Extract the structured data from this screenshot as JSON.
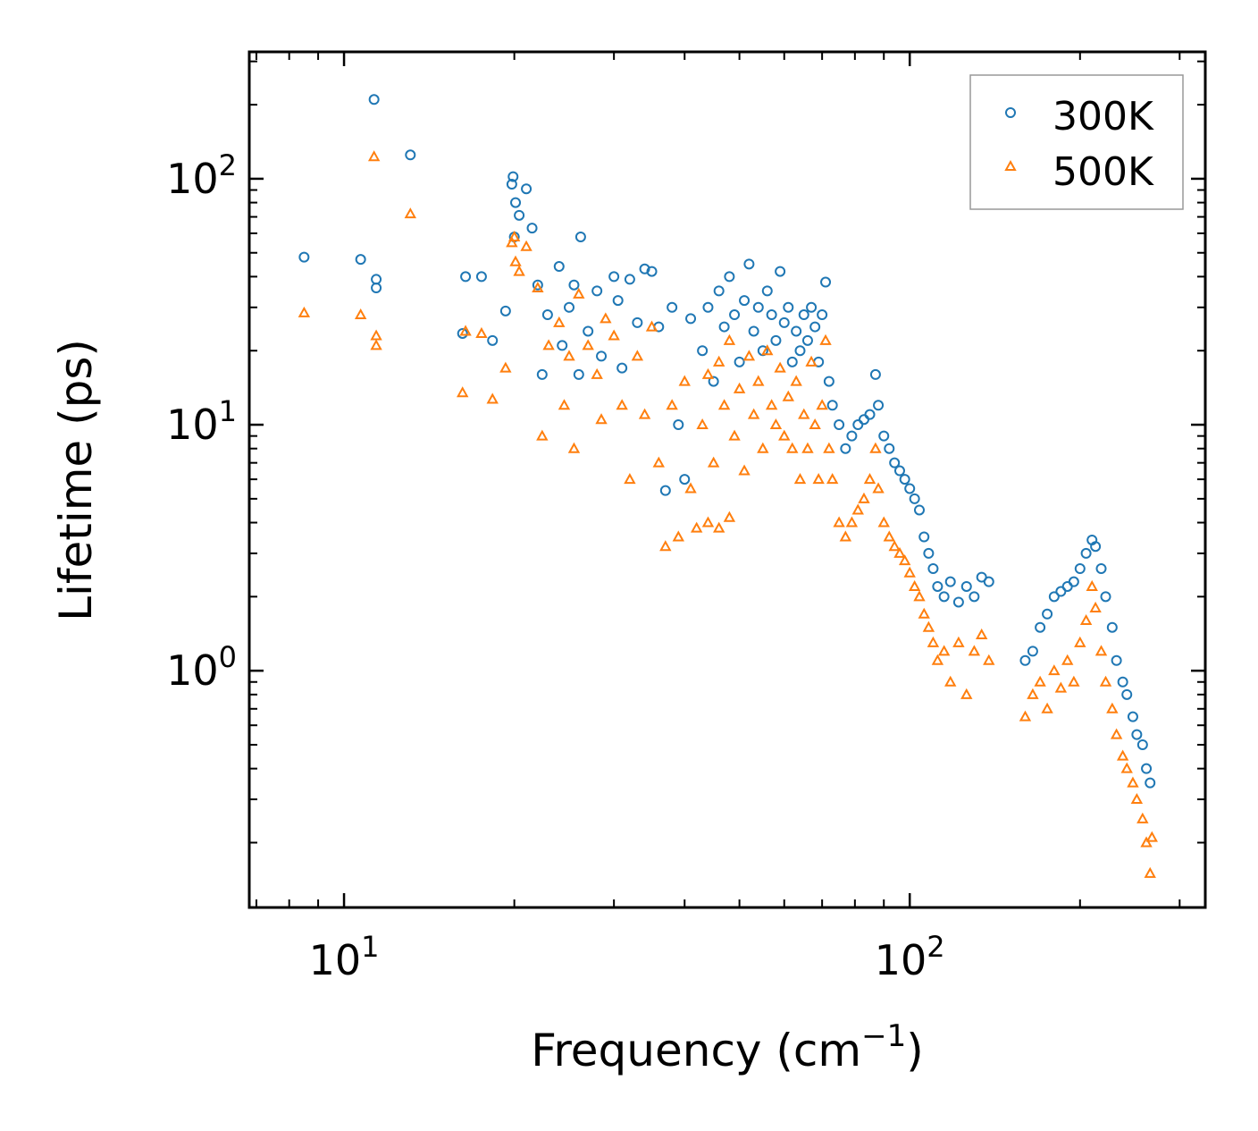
{
  "chart_data": {
    "type": "scatter",
    "xlabel": "Frequency (cm",
    "xlabel_sup": "−1",
    "xlabel_end": ")",
    "ylabel": "Lifetime (ps)",
    "xscale": "log",
    "yscale": "log",
    "xlim": [
      6.8,
      333
    ],
    "ylim": [
      0.109,
      328
    ],
    "x_ticks": [
      {
        "base": "10",
        "exp": "1",
        "value": 10
      },
      {
        "base": "10",
        "exp": "2",
        "value": 100
      }
    ],
    "y_ticks": [
      {
        "base": "10",
        "exp": "0",
        "value": 1
      },
      {
        "base": "10",
        "exp": "1",
        "value": 10
      },
      {
        "base": "10",
        "exp": "2",
        "value": 100
      }
    ],
    "legend_position": "top-right",
    "grid": false,
    "series": [
      {
        "name": "300K",
        "marker": "circle",
        "color": "#1f77b4",
        "points": [
          [
            8.5,
            48
          ],
          [
            10.7,
            47
          ],
          [
            11.3,
            210
          ],
          [
            11.4,
            39
          ],
          [
            11.4,
            36
          ],
          [
            13.1,
            125
          ],
          [
            16.2,
            23.5
          ],
          [
            16.4,
            40
          ],
          [
            17.5,
            40
          ],
          [
            18.3,
            22
          ],
          [
            19.3,
            29
          ],
          [
            19.8,
            95
          ],
          [
            19.9,
            102
          ],
          [
            20,
            58
          ],
          [
            20.1,
            80
          ],
          [
            20.4,
            71
          ],
          [
            21,
            91
          ],
          [
            21.5,
            63
          ],
          [
            22,
            37
          ],
          [
            22.4,
            16
          ],
          [
            22.9,
            28
          ],
          [
            24,
            44
          ],
          [
            24.3,
            21
          ],
          [
            25,
            30
          ],
          [
            25.5,
            37
          ],
          [
            26,
            16
          ],
          [
            26.2,
            58
          ],
          [
            27,
            24
          ],
          [
            28,
            35
          ],
          [
            28.5,
            19
          ],
          [
            30,
            40
          ],
          [
            30.5,
            32
          ],
          [
            31,
            17
          ],
          [
            32,
            39
          ],
          [
            33,
            26
          ],
          [
            34,
            43
          ],
          [
            35,
            42
          ],
          [
            36,
            25
          ],
          [
            37,
            5.4
          ],
          [
            38,
            30
          ],
          [
            39,
            10
          ],
          [
            40,
            6
          ],
          [
            41,
            27
          ],
          [
            43,
            20
          ],
          [
            44,
            30
          ],
          [
            45,
            15
          ],
          [
            46,
            35
          ],
          [
            47,
            25
          ],
          [
            48,
            40
          ],
          [
            49,
            28
          ],
          [
            50,
            18
          ],
          [
            51,
            32
          ],
          [
            52,
            45
          ],
          [
            53,
            24
          ],
          [
            54,
            30
          ],
          [
            55,
            20
          ],
          [
            56,
            35
          ],
          [
            57,
            28
          ],
          [
            58,
            22
          ],
          [
            59,
            42
          ],
          [
            60,
            26
          ],
          [
            61,
            30
          ],
          [
            62,
            18
          ],
          [
            63,
            24
          ],
          [
            64,
            20
          ],
          [
            65,
            28
          ],
          [
            66,
            22
          ],
          [
            67,
            30
          ],
          [
            68,
            25
          ],
          [
            69,
            18
          ],
          [
            70,
            28
          ],
          [
            71,
            38
          ],
          [
            72,
            15
          ],
          [
            73,
            12
          ],
          [
            75,
            10
          ],
          [
            77,
            8
          ],
          [
            79,
            9
          ],
          [
            81,
            10
          ],
          [
            83,
            10.5
          ],
          [
            85,
            11
          ],
          [
            87,
            16
          ],
          [
            88,
            12
          ],
          [
            90,
            9
          ],
          [
            92,
            8
          ],
          [
            94,
            7
          ],
          [
            96,
            6.5
          ],
          [
            98,
            6
          ],
          [
            100,
            5.5
          ],
          [
            102,
            5
          ],
          [
            104,
            4.5
          ],
          [
            106,
            3.5
          ],
          [
            108,
            3
          ],
          [
            110,
            2.6
          ],
          [
            112,
            2.2
          ],
          [
            115,
            2
          ],
          [
            118,
            2.3
          ],
          [
            122,
            1.9
          ],
          [
            126,
            2.2
          ],
          [
            130,
            2
          ],
          [
            134,
            2.4
          ],
          [
            138,
            2.3
          ],
          [
            160,
            1.1
          ],
          [
            165,
            1.2
          ],
          [
            170,
            1.5
          ],
          [
            175,
            1.7
          ],
          [
            180,
            2
          ],
          [
            185,
            2.1
          ],
          [
            190,
            2.2
          ],
          [
            195,
            2.3
          ],
          [
            200,
            2.6
          ],
          [
            205,
            3
          ],
          [
            210,
            3.4
          ],
          [
            213,
            3.2
          ],
          [
            218,
            2.6
          ],
          [
            222,
            2
          ],
          [
            228,
            1.5
          ],
          [
            232,
            1.1
          ],
          [
            238,
            0.9
          ],
          [
            242,
            0.8
          ],
          [
            248,
            0.65
          ],
          [
            252,
            0.55
          ],
          [
            258,
            0.5
          ],
          [
            262,
            0.4
          ],
          [
            266,
            0.35
          ]
        ]
      },
      {
        "name": "500K",
        "marker": "triangle",
        "color": "#ff7f0e",
        "points": [
          [
            8.5,
            28.5
          ],
          [
            10.7,
            28
          ],
          [
            11.3,
            123
          ],
          [
            11.4,
            23
          ],
          [
            11.4,
            21
          ],
          [
            13.1,
            72
          ],
          [
            16.2,
            13.5
          ],
          [
            16.4,
            24
          ],
          [
            17.5,
            23.5
          ],
          [
            18.3,
            12.7
          ],
          [
            19.3,
            17
          ],
          [
            19.8,
            55
          ],
          [
            20,
            58
          ],
          [
            20.1,
            46
          ],
          [
            20.4,
            42
          ],
          [
            21,
            53
          ],
          [
            22,
            36
          ],
          [
            22.4,
            9
          ],
          [
            23,
            21
          ],
          [
            24,
            26
          ],
          [
            24.5,
            12
          ],
          [
            25,
            19
          ],
          [
            25.5,
            8
          ],
          [
            26,
            34
          ],
          [
            27,
            21
          ],
          [
            28,
            16
          ],
          [
            28.5,
            10.5
          ],
          [
            29,
            27
          ],
          [
            30,
            23
          ],
          [
            31,
            12
          ],
          [
            32,
            6
          ],
          [
            33,
            19
          ],
          [
            34,
            11
          ],
          [
            35,
            25
          ],
          [
            36,
            7
          ],
          [
            37,
            3.2
          ],
          [
            38,
            12
          ],
          [
            39,
            3.5
          ],
          [
            40,
            15
          ],
          [
            41,
            5.5
          ],
          [
            42,
            3.8
          ],
          [
            44,
            4
          ],
          [
            46,
            3.8
          ],
          [
            48,
            4.2
          ],
          [
            43,
            10
          ],
          [
            44,
            16
          ],
          [
            45,
            7
          ],
          [
            46,
            18
          ],
          [
            47,
            12
          ],
          [
            48,
            22
          ],
          [
            49,
            9
          ],
          [
            50,
            14
          ],
          [
            51,
            6.5
          ],
          [
            52,
            19
          ],
          [
            53,
            11
          ],
          [
            54,
            15
          ],
          [
            55,
            8
          ],
          [
            56,
            20
          ],
          [
            57,
            12
          ],
          [
            58,
            10
          ],
          [
            59,
            17
          ],
          [
            60,
            9
          ],
          [
            61,
            13
          ],
          [
            62,
            8
          ],
          [
            63,
            15
          ],
          [
            64,
            6
          ],
          [
            65,
            11
          ],
          [
            66,
            8
          ],
          [
            67,
            18
          ],
          [
            68,
            10
          ],
          [
            69,
            6
          ],
          [
            70,
            12
          ],
          [
            71,
            22
          ],
          [
            72,
            8
          ],
          [
            73,
            6
          ],
          [
            75,
            4
          ],
          [
            77,
            3.5
          ],
          [
            79,
            4
          ],
          [
            81,
            4.5
          ],
          [
            83,
            5
          ],
          [
            85,
            6
          ],
          [
            87,
            8
          ],
          [
            88,
            5.5
          ],
          [
            90,
            4
          ],
          [
            92,
            3.5
          ],
          [
            94,
            3.2
          ],
          [
            96,
            3
          ],
          [
            98,
            2.8
          ],
          [
            100,
            2.5
          ],
          [
            102,
            2.2
          ],
          [
            104,
            2
          ],
          [
            106,
            1.7
          ],
          [
            108,
            1.5
          ],
          [
            110,
            1.3
          ],
          [
            112,
            1.1
          ],
          [
            115,
            1.2
          ],
          [
            118,
            0.9
          ],
          [
            122,
            1.3
          ],
          [
            126,
            0.8
          ],
          [
            130,
            1.2
          ],
          [
            134,
            1.4
          ],
          [
            138,
            1.1
          ],
          [
            160,
            0.65
          ],
          [
            165,
            0.8
          ],
          [
            170,
            0.9
          ],
          [
            175,
            0.7
          ],
          [
            180,
            1
          ],
          [
            185,
            0.85
          ],
          [
            190,
            1.1
          ],
          [
            195,
            0.9
          ],
          [
            200,
            1.3
          ],
          [
            205,
            1.6
          ],
          [
            210,
            2.2
          ],
          [
            213,
            1.8
          ],
          [
            218,
            1.2
          ],
          [
            222,
            0.9
          ],
          [
            228,
            0.7
          ],
          [
            232,
            0.55
          ],
          [
            238,
            0.45
          ],
          [
            242,
            0.4
          ],
          [
            248,
            0.35
          ],
          [
            252,
            0.3
          ],
          [
            258,
            0.25
          ],
          [
            262,
            0.2
          ],
          [
            266,
            0.15
          ],
          [
            268,
            0.21
          ]
        ]
      }
    ]
  }
}
